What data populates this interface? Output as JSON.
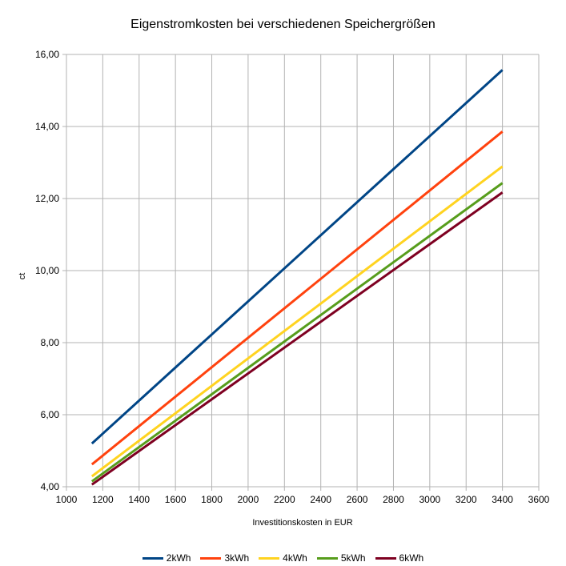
{
  "chart_data": {
    "type": "line",
    "title": "Eigenstromkosten bei verschiedenen Speichergrößen",
    "xlabel": "Investitionskosten in EUR",
    "ylabel": "ct",
    "xlim": [
      1000,
      3600
    ],
    "ylim": [
      4,
      16
    ],
    "x_ticks": [
      1000,
      1200,
      1400,
      1600,
      1800,
      2000,
      2200,
      2400,
      2600,
      2800,
      3000,
      3200,
      3400,
      3600
    ],
    "y_ticks": [
      4,
      6,
      8,
      10,
      12,
      14,
      16
    ],
    "y_tick_labels": [
      "4,00",
      "6,00",
      "8,00",
      "10,00",
      "12,00",
      "14,00",
      "16,00"
    ],
    "grid": true,
    "legend_position": "bottom",
    "series": [
      {
        "name": "2kWh",
        "color": "#004586",
        "x": [
          1140,
          3400
        ],
        "values": [
          5.2,
          15.57
        ]
      },
      {
        "name": "3kWh",
        "color": "#ff420e",
        "x": [
          1140,
          3400
        ],
        "values": [
          4.62,
          13.86
        ]
      },
      {
        "name": "4kWh",
        "color": "#ffd320",
        "x": [
          1140,
          3400
        ],
        "values": [
          4.29,
          12.89
        ]
      },
      {
        "name": "5kWh",
        "color": "#579d1c",
        "x": [
          1140,
          3400
        ],
        "values": [
          4.15,
          12.43
        ]
      },
      {
        "name": "6kWh",
        "color": "#7e0021",
        "x": [
          1140,
          3400
        ],
        "values": [
          4.06,
          12.17
        ]
      }
    ]
  }
}
